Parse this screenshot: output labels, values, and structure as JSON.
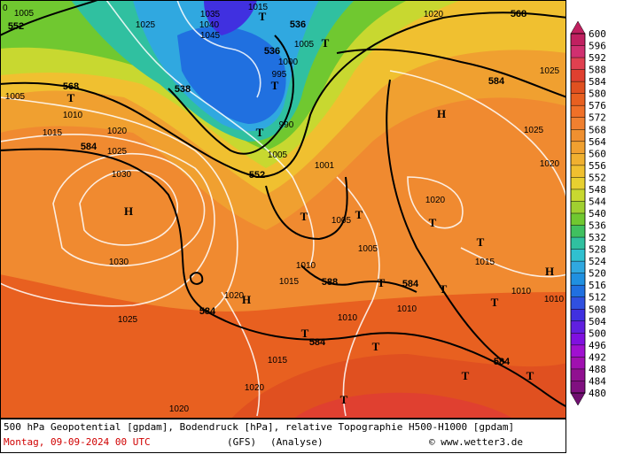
{
  "map": {
    "corner_label": "0",
    "geopotential_labels": [
      "552",
      "536",
      "536",
      "538",
      "568",
      "584",
      "552",
      "584",
      "568",
      "588",
      "584",
      "584",
      "584",
      "584"
    ],
    "pressure_labels": [
      "1030",
      "1030",
      "1025",
      "1015",
      "1020",
      "1025",
      "1010",
      "1005",
      "1005",
      "1025",
      "1035",
      "1045",
      "1040",
      "1015",
      "1000",
      "995",
      "990",
      "1005",
      "1001",
      "1005",
      "1005",
      "1010",
      "1015",
      "1020",
      "1025",
      "1025",
      "1020",
      "1015",
      "1010",
      "1010",
      "1010",
      "1010",
      "1015",
      "1020",
      "1020",
      "1020",
      "1020",
      "1005"
    ],
    "pressure_systems": [
      "H",
      "H",
      "H",
      "H",
      "T",
      "T",
      "T",
      "T",
      "T",
      "T",
      "T",
      "T",
      "T",
      "T",
      "T",
      "T",
      "T",
      "T",
      "T",
      "T",
      "T"
    ]
  },
  "colorbar": {
    "levels": [
      600,
      596,
      592,
      588,
      584,
      580,
      576,
      572,
      568,
      564,
      560,
      556,
      552,
      548,
      544,
      540,
      536,
      532,
      528,
      524,
      520,
      516,
      512,
      508,
      504,
      500,
      496,
      492,
      488,
      484,
      480
    ],
    "colors": [
      "#c02060",
      "#d03070",
      "#e04050",
      "#e04030",
      "#e05020",
      "#e86020",
      "#f07028",
      "#f08030",
      "#f09030",
      "#f0a030",
      "#f0b030",
      "#f0c030",
      "#e8d030",
      "#c8d830",
      "#a0d030",
      "#70c830",
      "#40c060",
      "#30c0a0",
      "#30c0d0",
      "#30a8e0",
      "#2090e0",
      "#2070e0",
      "#3050e0",
      "#4030e0",
      "#6020e0",
      "#8010e0",
      "#a010d0",
      "#a010b0",
      "#901090",
      "#801080",
      "#701070"
    ]
  },
  "caption": {
    "line1": "500 hPa Geopotential [gpdam], Bodendruck [hPa], relative Topographie H500-H1000 [gpdam]",
    "date": "Montag, 09-09-2024  00 UTC",
    "model": "(GFS)",
    "run": "(Analyse)",
    "credit": "© www.wetter3.de"
  }
}
